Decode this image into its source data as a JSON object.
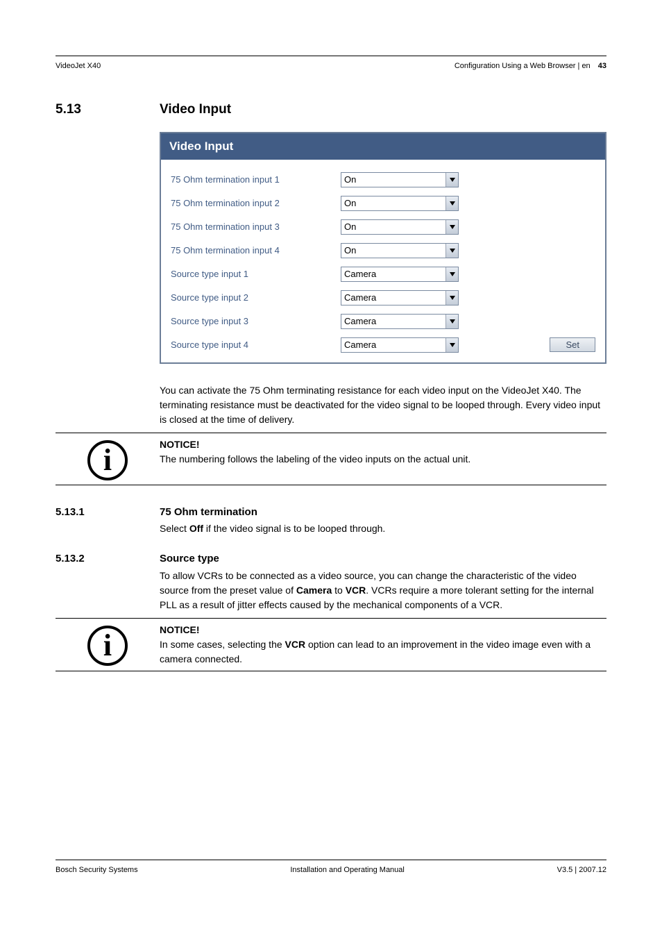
{
  "header": {
    "left": "VideoJet X40",
    "right": "Configuration Using a Web Browser | en",
    "page_num": "43"
  },
  "section": {
    "num": "5.13",
    "title": "Video Input"
  },
  "panel": {
    "title": "Video Input",
    "rows": [
      {
        "label": "75 Ohm termination input 1",
        "value": "On"
      },
      {
        "label": "75 Ohm termination input 2",
        "value": "On"
      },
      {
        "label": "75 Ohm termination input 3",
        "value": "On"
      },
      {
        "label": "75 Ohm termination input 4",
        "value": "On"
      },
      {
        "label": "Source type input 1",
        "value": "Camera"
      },
      {
        "label": "Source type input 2",
        "value": "Camera"
      },
      {
        "label": "Source type input 3",
        "value": "Camera"
      },
      {
        "label": "Source type input 4",
        "value": "Camera"
      }
    ],
    "set_label": "Set"
  },
  "intro_text": "You can activate the 75 Ohm terminating resistance for each video input on the VideoJet X40. The terminating resistance must be deactivated for the video signal to be looped through. Every video input is closed at the time of delivery.",
  "notice1": {
    "title": "NOTICE!",
    "body": "The numbering follows the labeling of the video inputs on the actual unit."
  },
  "sub1": {
    "num": "5.13.1",
    "title": "75 Ohm termination",
    "pre": "Select ",
    "bold": "Off",
    "post": " if the video signal is to be looped through."
  },
  "sub2": {
    "num": "5.13.2",
    "title": "Source type",
    "t1": "To allow VCRs to be connected as a video source, you can change the characteristic of the video source from the preset value of ",
    "b1": "Camera",
    "t2": " to ",
    "b2": "VCR",
    "t3": ".  VCRs require a more tolerant setting for the internal PLL as a result of jitter effects caused by the mechanical components of a VCR."
  },
  "notice2": {
    "title": "NOTICE!",
    "t1": "In some cases, selecting the ",
    "b1": "VCR",
    "t2": " option can lead to an improvement in the video image even with a camera connected."
  },
  "footer": {
    "left": "Bosch Security Systems",
    "center": "Installation and Operating Manual",
    "right": "V3.5 | 2007.12"
  }
}
